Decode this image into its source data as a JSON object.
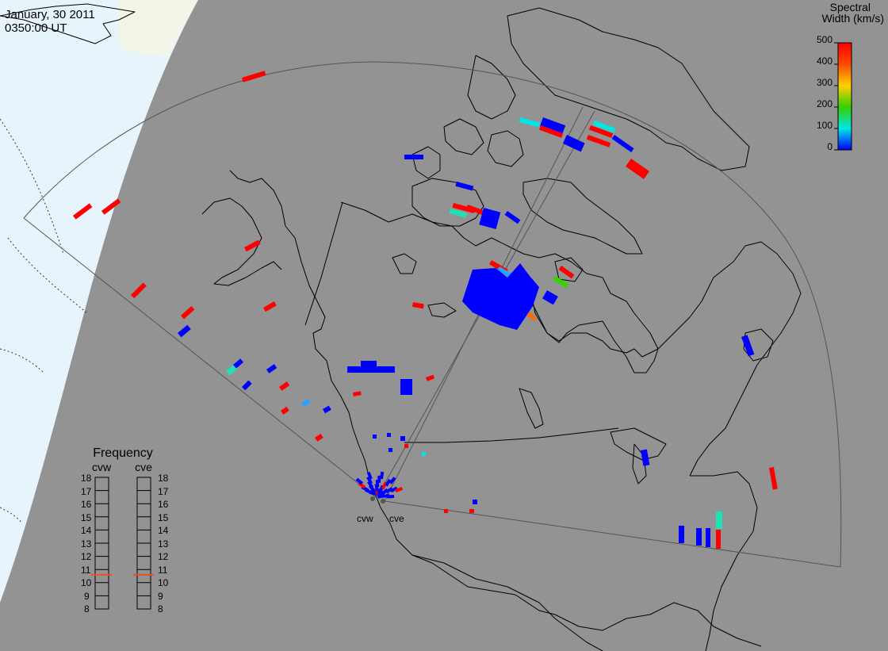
{
  "header": {
    "date": "January, 30 2011",
    "time": "0350:00 UT"
  },
  "colorbar": {
    "title_line1": "Spectral",
    "title_line2": "Width (km/s)",
    "ticks": [
      "500",
      "400",
      "300",
      "200",
      "100",
      "0"
    ]
  },
  "radars": [
    {
      "id": "cvw",
      "label": "cvw"
    },
    {
      "id": "cve",
      "label": "cve"
    }
  ],
  "frequency": {
    "title": "Frequency",
    "radars": [
      "cvw",
      "cve"
    ],
    "scale": [
      "18",
      "17",
      "16",
      "15",
      "14",
      "13",
      "12",
      "11",
      "10",
      "9",
      "8"
    ],
    "values_mhz": {
      "cvw": 10.6,
      "cve": 10.6
    },
    "indicator_color": "#e8521a"
  },
  "colors": {
    "land": "#939393",
    "night_shade": "#e8f4fb",
    "dusk_band": "#f3f5e8",
    "coast": "#000000",
    "fov": "#555555",
    "scale_high": "#ff0000",
    "scale_low": "#0000ff"
  }
}
